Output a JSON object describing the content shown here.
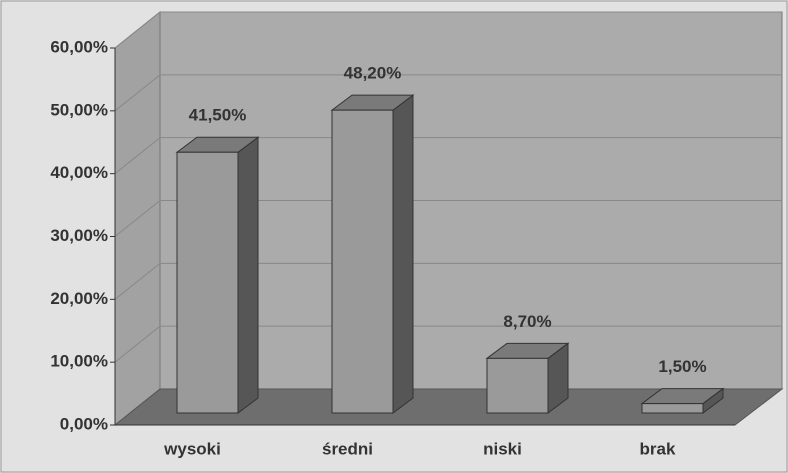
{
  "chart_data": {
    "type": "bar3d",
    "categories": [
      "wysoki",
      "średni",
      "niski",
      "brak"
    ],
    "values": [
      41.5,
      48.2,
      8.7,
      1.5
    ],
    "value_labels": [
      "41,50%",
      "48,20%",
      "8,70%",
      "1,50%"
    ],
    "ylim": [
      0,
      60
    ],
    "yticks": [
      {
        "value": 0,
        "label": "0,00%"
      },
      {
        "value": 10,
        "label": "10,00%"
      },
      {
        "value": 20,
        "label": "20,00%"
      },
      {
        "value": 30,
        "label": "30,00%"
      },
      {
        "value": 40,
        "label": "40,00%"
      },
      {
        "value": 50,
        "label": "50,00%"
      },
      {
        "value": 60,
        "label": "60,00%"
      }
    ],
    "grid": true,
    "color": "#9a9a9a"
  }
}
